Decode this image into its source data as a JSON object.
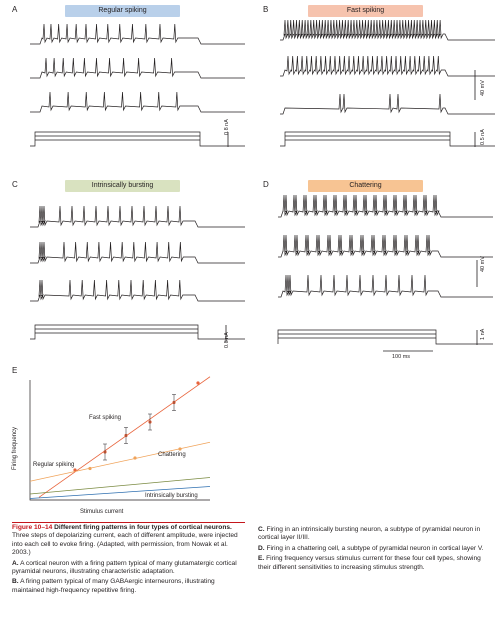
{
  "panels": {
    "A": {
      "letter": "A",
      "title": "Regular spiking",
      "pill_color": "#b9d0ea",
      "current_scale": "0.8 nA"
    },
    "B": {
      "letter": "B",
      "title": "Fast spiking",
      "pill_color": "#f6c3ae",
      "voltage_scale": "40 mV",
      "current_scale": "0.5 nA"
    },
    "C": {
      "letter": "C",
      "title": "Intrinsically bursting",
      "pill_color": "#d9e2c0",
      "current_scale": "0.8 nA"
    },
    "D": {
      "letter": "D",
      "title": "Chattering",
      "pill_color": "#f7c493",
      "voltage_scale": "40 mV",
      "current_scale": "1 nA",
      "time_scale": "100 ms"
    }
  },
  "graphE": {
    "letter": "E",
    "xlabel": "Stimulus current",
    "ylabel": "Firing frequency",
    "labels": {
      "fast": "Fast spiking",
      "chattering": "Chattering",
      "regular": "Regular spiking",
      "bursting": "Intrinsically bursting"
    }
  },
  "colors": {
    "fast_spiking": "#e8643c",
    "chattering": "#f0a35a",
    "regular_spiking": "#7a8a40",
    "intrinsically_bursting": "#2e6fb0",
    "caption_red": "#c4161c"
  },
  "chart_data": {
    "type": "line",
    "title": "",
    "xlabel": "Stimulus current",
    "ylabel": "Firing frequency",
    "series": [
      {
        "name": "Fast spiking",
        "points": [
          [
            1.5,
            2.0
          ],
          [
            2.5,
            3.2
          ],
          [
            3.2,
            4.3
          ],
          [
            4.0,
            5.2
          ],
          [
            4.8,
            6.5
          ],
          [
            5.6,
            7.8
          ]
        ]
      },
      {
        "name": "Chattering",
        "points": [
          [
            2.0,
            2.1
          ],
          [
            3.5,
            2.8
          ],
          [
            5.0,
            3.4
          ]
        ]
      },
      {
        "name": "Regular spiking",
        "points": [
          [
            0,
            0.4
          ],
          [
            6.0,
            1.5
          ]
        ]
      },
      {
        "name": "Intrinsically bursting",
        "points": [
          [
            0,
            0.1
          ],
          [
            6.0,
            0.9
          ]
        ]
      }
    ]
  },
  "caption": {
    "fig_num": "Figure 10–14",
    "fig_title": "Different firing patterns in four types of cortical neurons.",
    "fig_body": "Three steps of depolarizing current, each of different amplitude, were injected into each cell to evoke firing. (Adapted, with permission, from Nowak et al. 2003.)",
    "A_letter": "A.",
    "A_text": "A cortical neuron with a firing pattern typical of many glutamatergic cortical pyramidal neurons, illustrating characteristic adaptation.",
    "B_letter": "B.",
    "B_text": "A firing pattern typical of many GABAergic interneurons, illustrating maintained high-frequency repetitive firing.",
    "C_letter": "C.",
    "C_text": "Firing in an intrinsically bursting neuron, a subtype of pyramidal neuron in cortical layer II/III.",
    "D_letter": "D.",
    "D_text": "Firing in a chattering cell, a subtype of pyramidal neuron in cortical layer V.",
    "E_letter": "E.",
    "E_text": "Firing frequency versus stimulus current for these four cell types, showing their different sensitivities to increasing stimulus strength."
  }
}
